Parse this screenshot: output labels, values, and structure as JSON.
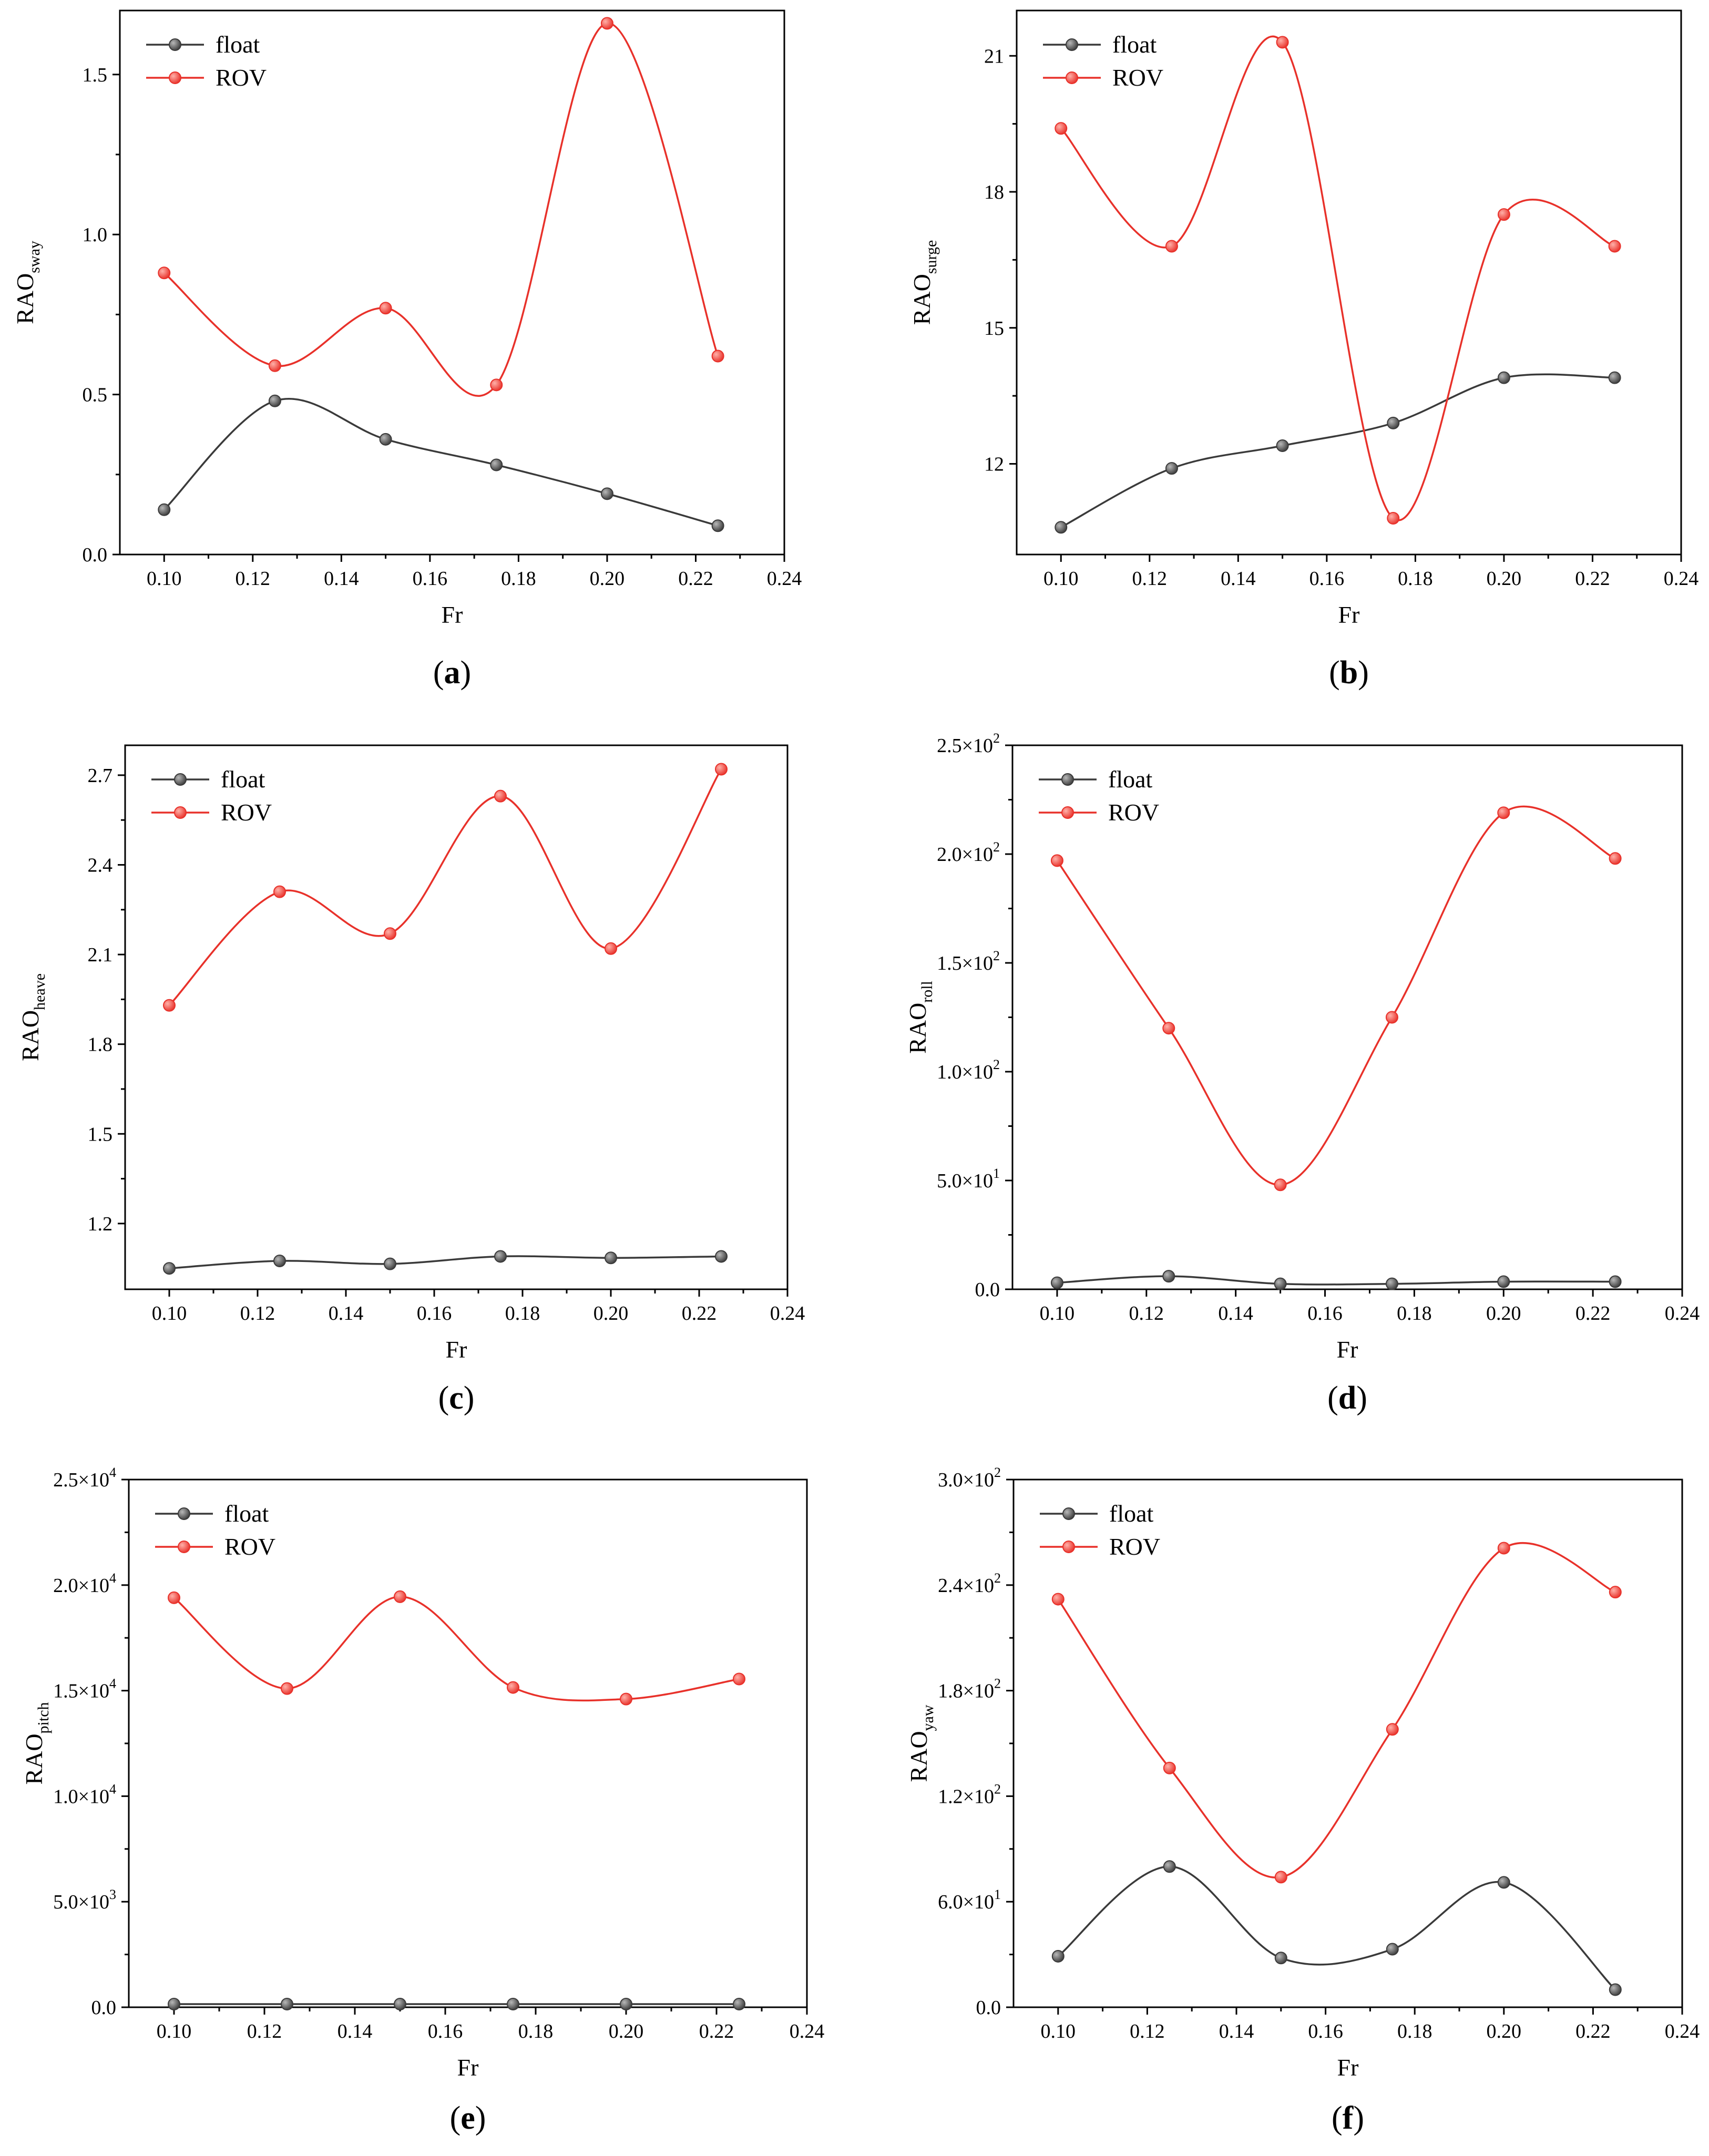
{
  "colors": {
    "float": "#3a3a3a",
    "rov": "#e8312a",
    "axis": "#000000"
  },
  "legend": {
    "float": "float",
    "rov": "ROV"
  },
  "paren_open": "(",
  "paren_close": ")",
  "chart_data": [
    {
      "type": "line",
      "panel": "a",
      "xlabel": "Fr",
      "ylabel": {
        "main": "RAO",
        "sub": "sway"
      },
      "xlim": [
        0.09,
        0.24
      ],
      "ylim": [
        0,
        1.7
      ],
      "xticks": [
        0.1,
        0.12,
        0.14,
        0.16,
        0.18,
        0.2,
        0.22,
        0.24
      ],
      "xtick_labels": [
        "0.10",
        "0.12",
        "0.14",
        "0.16",
        "0.18",
        "0.20",
        "0.22",
        "0.24"
      ],
      "yticks": [
        0.0,
        0.5,
        1.0,
        1.5
      ],
      "ytick_labels": [
        "0.0",
        "0.5",
        "1.0",
        "1.5"
      ],
      "legend_position": "top-left",
      "x": [
        0.1,
        0.125,
        0.15,
        0.175,
        0.2,
        0.225
      ],
      "series": [
        {
          "name": "float",
          "values": [
            0.14,
            0.48,
            0.36,
            0.28,
            0.19,
            0.09
          ]
        },
        {
          "name": "ROV",
          "values": [
            0.88,
            0.59,
            0.77,
            0.53,
            1.66,
            0.62
          ]
        }
      ]
    },
    {
      "type": "line",
      "panel": "b",
      "xlabel": "Fr",
      "ylabel": {
        "main": "RAO",
        "sub": "surge"
      },
      "xlim": [
        0.09,
        0.24
      ],
      "ylim": [
        10,
        22
      ],
      "xticks": [
        0.1,
        0.12,
        0.14,
        0.16,
        0.18,
        0.2,
        0.22,
        0.24
      ],
      "xtick_labels": [
        "0.10",
        "0.12",
        "0.14",
        "0.16",
        "0.18",
        "0.20",
        "0.22",
        "0.24"
      ],
      "yticks": [
        12,
        15,
        18,
        21
      ],
      "ytick_labels": [
        "12",
        "15",
        "18",
        "21"
      ],
      "legend_position": "top-left",
      "x": [
        0.1,
        0.125,
        0.15,
        0.175,
        0.2,
        0.225
      ],
      "series": [
        {
          "name": "float",
          "values": [
            10.6,
            11.9,
            12.4,
            12.9,
            13.9,
            13.9
          ]
        },
        {
          "name": "ROV",
          "values": [
            19.4,
            16.8,
            21.3,
            10.8,
            17.5,
            16.8
          ]
        }
      ]
    },
    {
      "type": "line",
      "panel": "c",
      "xlabel": "Fr",
      "ylabel": {
        "main": "RAO",
        "sub": "heave"
      },
      "xlim": [
        0.09,
        0.24
      ],
      "ylim": [
        0.98,
        2.8
      ],
      "xticks": [
        0.1,
        0.12,
        0.14,
        0.16,
        0.18,
        0.2,
        0.22,
        0.24
      ],
      "xtick_labels": [
        "0.10",
        "0.12",
        "0.14",
        "0.16",
        "0.18",
        "0.20",
        "0.22",
        "0.24"
      ],
      "yticks": [
        1.2,
        1.5,
        1.8,
        2.1,
        2.4,
        2.7
      ],
      "ytick_labels": [
        "1.2",
        "1.5",
        "1.8",
        "2.1",
        "2.4",
        "2.7"
      ],
      "legend_position": "top-left",
      "x": [
        0.1,
        0.125,
        0.15,
        0.175,
        0.2,
        0.225
      ],
      "series": [
        {
          "name": "float",
          "values": [
            1.05,
            1.075,
            1.065,
            1.09,
            1.085,
            1.09
          ]
        },
        {
          "name": "ROV",
          "values": [
            1.93,
            2.31,
            2.17,
            2.63,
            2.12,
            2.72
          ]
        }
      ]
    },
    {
      "type": "line",
      "panel": "d",
      "xlabel": "Fr",
      "ylabel": {
        "main": "RAO",
        "sub": "roll"
      },
      "xlim": [
        0.09,
        0.24
      ],
      "ylim": [
        0,
        250
      ],
      "xticks": [
        0.1,
        0.12,
        0.14,
        0.16,
        0.18,
        0.2,
        0.22,
        0.24
      ],
      "xtick_labels": [
        "0.10",
        "0.12",
        "0.14",
        "0.16",
        "0.18",
        "0.20",
        "0.22",
        "0.24"
      ],
      "yticks": [
        0,
        50,
        100,
        150,
        200,
        250
      ],
      "ytick_labels": [
        {
          "base": "0.0",
          "exp": ""
        },
        {
          "base": "5.0×10",
          "exp": "1"
        },
        {
          "base": "1.0×10",
          "exp": "2"
        },
        {
          "base": "1.5×10",
          "exp": "2"
        },
        {
          "base": "2.0×10",
          "exp": "2"
        },
        {
          "base": "2.5×10",
          "exp": "2"
        }
      ],
      "legend_position": "top-left",
      "x": [
        0.1,
        0.125,
        0.15,
        0.175,
        0.2,
        0.225
      ],
      "series": [
        {
          "name": "float",
          "values": [
            3,
            6,
            2.5,
            2.5,
            3.5,
            3.5
          ]
        },
        {
          "name": "ROV",
          "values": [
            197,
            120,
            48,
            125,
            219,
            198
          ]
        }
      ]
    },
    {
      "type": "line",
      "panel": "e",
      "xlabel": "Fr",
      "ylabel": {
        "main": "RAO",
        "sub": "pitch"
      },
      "xlim": [
        0.09,
        0.24
      ],
      "ylim": [
        0,
        25000
      ],
      "xticks": [
        0.1,
        0.12,
        0.14,
        0.16,
        0.18,
        0.2,
        0.22,
        0.24
      ],
      "xtick_labels": [
        "0.10",
        "0.12",
        "0.14",
        "0.16",
        "0.18",
        "0.20",
        "0.22",
        "0.24"
      ],
      "yticks": [
        0,
        5000,
        10000,
        15000,
        20000,
        25000
      ],
      "ytick_labels": [
        {
          "base": "0.0",
          "exp": ""
        },
        {
          "base": "5.0×10",
          "exp": "3"
        },
        {
          "base": "1.0×10",
          "exp": "4"
        },
        {
          "base": "1.5×10",
          "exp": "4"
        },
        {
          "base": "2.0×10",
          "exp": "4"
        },
        {
          "base": "2.5×10",
          "exp": "4"
        }
      ],
      "legend_position": "top-left",
      "x": [
        0.1,
        0.125,
        0.15,
        0.175,
        0.2,
        0.225
      ],
      "series": [
        {
          "name": "float",
          "values": [
            150,
            150,
            150,
            150,
            150,
            150
          ]
        },
        {
          "name": "ROV",
          "values": [
            19400,
            15100,
            19450,
            15150,
            14600,
            15550
          ]
        }
      ]
    },
    {
      "type": "line",
      "panel": "f",
      "xlabel": "Fr",
      "ylabel": {
        "main": "RAO",
        "sub": "yaw"
      },
      "xlim": [
        0.09,
        0.24
      ],
      "ylim": [
        0,
        300
      ],
      "xticks": [
        0.1,
        0.12,
        0.14,
        0.16,
        0.18,
        0.2,
        0.22,
        0.24
      ],
      "xtick_labels": [
        "0.10",
        "0.12",
        "0.14",
        "0.16",
        "0.18",
        "0.20",
        "0.22",
        "0.24"
      ],
      "yticks": [
        0,
        60,
        120,
        180,
        240,
        300
      ],
      "ytick_labels": [
        {
          "base": "0.0",
          "exp": ""
        },
        {
          "base": "6.0×10",
          "exp": "1"
        },
        {
          "base": "1.2×10",
          "exp": "2"
        },
        {
          "base": "1.8×10",
          "exp": "2"
        },
        {
          "base": "2.4×10",
          "exp": "2"
        },
        {
          "base": "3.0×10",
          "exp": "2"
        }
      ],
      "legend_position": "top-left",
      "x": [
        0.1,
        0.125,
        0.15,
        0.175,
        0.2,
        0.225
      ],
      "series": [
        {
          "name": "float",
          "values": [
            29,
            80,
            28,
            33,
            71,
            10
          ]
        },
        {
          "name": "ROV",
          "values": [
            232,
            136,
            74,
            158,
            261,
            236
          ]
        }
      ]
    }
  ]
}
